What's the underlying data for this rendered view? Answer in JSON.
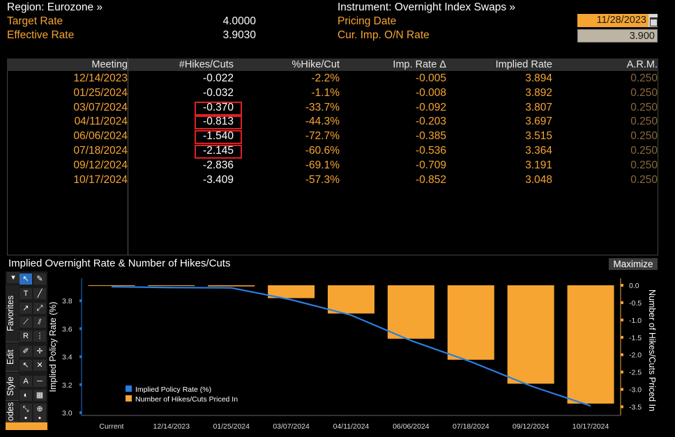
{
  "header": {
    "region": "Region: Eurozone »",
    "target_rate_label": "Target Rate",
    "target_rate_value": "4.0000",
    "effective_rate_label": "Effective Rate",
    "effective_rate_value": "3.9030",
    "instrument": "Instrument: Overnight Index Swaps »",
    "pricing_date_label": "Pricing Date",
    "pricing_date_value": "11/28/2023",
    "cur_imp_label": "Cur. Imp. O/N Rate",
    "cur_imp_value": "3.900"
  },
  "table": {
    "columns": [
      "Meeting",
      "#Hikes/Cuts",
      "%Hike/Cut",
      "Imp. Rate Δ",
      "Implied Rate",
      "A.R.M."
    ],
    "rows": [
      {
        "meeting": "12/14/2023",
        "hikes": "-0.022",
        "pct": "-2.2%",
        "imp": "-0.005",
        "rate": "3.894",
        "arm": "0.250",
        "highlight": false
      },
      {
        "meeting": "01/25/2024",
        "hikes": "-0.032",
        "pct": "-1.1%",
        "imp": "-0.008",
        "rate": "3.892",
        "arm": "0.250",
        "highlight": false
      },
      {
        "meeting": "03/07/2024",
        "hikes": "-0.370",
        "pct": "-33.7%",
        "imp": "-0.092",
        "rate": "3.807",
        "arm": "0.250",
        "highlight": true
      },
      {
        "meeting": "04/11/2024",
        "hikes": "-0.813",
        "pct": "-44.3%",
        "imp": "-0.203",
        "rate": "3.697",
        "arm": "0.250",
        "highlight": true
      },
      {
        "meeting": "06/06/2024",
        "hikes": "-1.540",
        "pct": "-72.7%",
        "imp": "-0.385",
        "rate": "3.515",
        "arm": "0.250",
        "highlight": true
      },
      {
        "meeting": "07/18/2024",
        "hikes": "-2.145",
        "pct": "-60.6%",
        "imp": "-0.536",
        "rate": "3.364",
        "arm": "0.250",
        "highlight": true
      },
      {
        "meeting": "09/12/2024",
        "hikes": "-2.836",
        "pct": "-69.1%",
        "imp": "-0.709",
        "rate": "3.191",
        "arm": "0.250",
        "highlight": false
      },
      {
        "meeting": "10/17/2024",
        "hikes": "-3.409",
        "pct": "-57.3%",
        "imp": "-0.852",
        "rate": "3.048",
        "arm": "0.250",
        "highlight": false
      }
    ]
  },
  "chart_panel": {
    "title": "Implied Overnight Rate & Number of Hikes/Cuts",
    "maximize_label": "Maximize",
    "tabs": [
      "Favorites",
      "Edit",
      "Style",
      "odes"
    ]
  },
  "colors": {
    "accent_orange": "#f6a532",
    "line_blue": "#2b7de0",
    "highlight_red": "#e02020"
  },
  "chart_data": {
    "type": "bar",
    "categories": [
      "Current",
      "12/14/2023",
      "01/25/2024",
      "03/07/2024",
      "04/11/2024",
      "06/06/2024",
      "07/18/2024",
      "09/12/2024",
      "10/17/2024"
    ],
    "series": [
      {
        "name": "Implied Policy Rate (%)",
        "type": "line",
        "axis": "left",
        "values": [
          3.9,
          3.894,
          3.892,
          3.807,
          3.697,
          3.515,
          3.364,
          3.191,
          3.048
        ]
      },
      {
        "name": "Number of Hikes/Cuts Priced In",
        "type": "bar",
        "axis": "right",
        "values": [
          0,
          -0.022,
          -0.032,
          -0.37,
          -0.813,
          -1.54,
          -2.145,
          -2.836,
          -3.409
        ]
      }
    ],
    "ylabel": "Implied Policy Rate (%)",
    "y2label": "Number of Hikes/Cuts Priced In",
    "ylim": [
      2.98,
      3.96
    ],
    "y2lim": [
      -3.75,
      0.2
    ],
    "yticks": [
      "3.0",
      "3.2",
      "3.4",
      "3.6",
      "3.8"
    ],
    "y2ticks": [
      "0.0",
      "-0.5",
      "-1.0",
      "-1.5",
      "-2.0",
      "-2.5",
      "-3.0",
      "-3.5"
    ],
    "legend": "bottom-left",
    "grid": false
  }
}
